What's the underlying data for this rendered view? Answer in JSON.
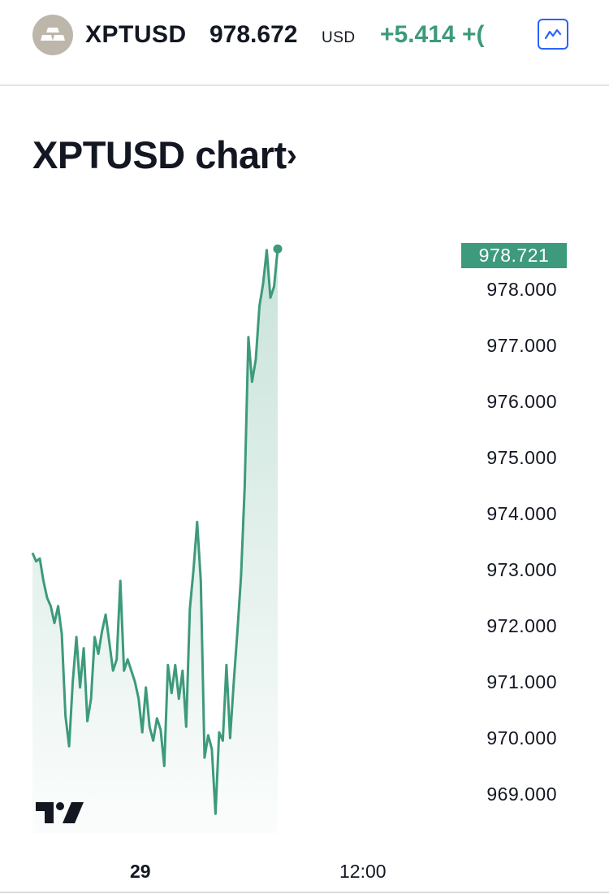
{
  "header": {
    "symbol": "XPTUSD",
    "price": "978.672",
    "currency": "USD",
    "change": "+5.414",
    "change_percent_partial": "+(",
    "logo_icon": "precious-metal-bars-icon",
    "chart_button_icon": "line-chart-icon"
  },
  "title": {
    "text": "XPTUSD chart",
    "chevron": "›"
  },
  "chart": {
    "last_value_label": "978.721",
    "tv_logo_icon": "tradingview-logo-icon"
  },
  "colors": {
    "accent": "#3d9a7c",
    "blue": "#2962ff",
    "text": "#131722"
  },
  "chart_data": {
    "type": "area",
    "title": "XPTUSD chart",
    "x_tick_labels": [
      "29",
      "12:00"
    ],
    "y_tick_labels": [
      "978.000",
      "977.000",
      "976.000",
      "975.000",
      "974.000",
      "973.000",
      "972.000",
      "971.000",
      "970.000",
      "969.000"
    ],
    "ylim": [
      968.4,
      979.3
    ],
    "last_value": 978.721,
    "series": [
      {
        "values": [
          973.3,
          973.15,
          973.2,
          972.8,
          972.5,
          972.35,
          972.05,
          972.35,
          971.85,
          970.4,
          969.85,
          971.0,
          971.8,
          970.9,
          971.6,
          970.3,
          970.7,
          971.8,
          971.5,
          971.9,
          972.2,
          971.7,
          971.2,
          971.4,
          972.8,
          971.2,
          971.4,
          971.2,
          971.0,
          970.7,
          970.1,
          970.9,
          970.2,
          969.95,
          970.35,
          970.15,
          969.5,
          971.3,
          970.8,
          971.3,
          970.7,
          971.2,
          970.2,
          972.3,
          973.0,
          973.85,
          972.8,
          969.65,
          970.05,
          969.8,
          968.65,
          970.1,
          969.95,
          971.3,
          970.0,
          971.0,
          971.9,
          972.9,
          974.5,
          977.15,
          976.35,
          976.75,
          977.7,
          978.1,
          978.7,
          977.85,
          978.05,
          978.721
        ]
      }
    ],
    "grid": false,
    "legend": "none"
  }
}
